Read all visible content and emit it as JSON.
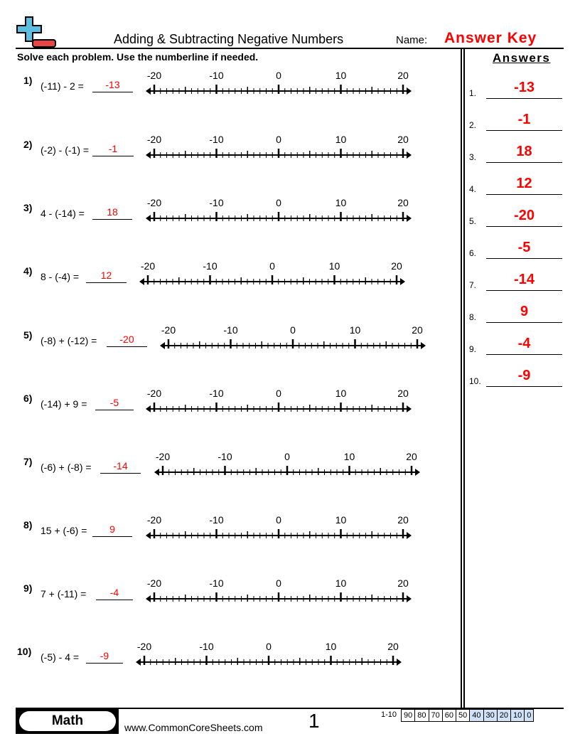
{
  "header": {
    "title": "Adding & Subtracting Negative Numbers",
    "name_label": "Name:",
    "name_value": "Answer Key",
    "logo": "plus-minus-logo",
    "logo_colors": {
      "plus": "#5bbde0",
      "minus": "#e84545"
    }
  },
  "instructions": "Solve each problem. Use the numberline if needed.",
  "numberline": {
    "min": -20,
    "max": 20,
    "labels": [
      "-20",
      "-10",
      "0",
      "10",
      "20"
    ]
  },
  "problems": [
    {
      "num": "1)",
      "expr": "(-11) - 2 =",
      "answer": "-13"
    },
    {
      "num": "2)",
      "expr": "(-2) - (-1) =",
      "answer": "-1"
    },
    {
      "num": "3)",
      "expr": "4 - (-14) =",
      "answer": "18"
    },
    {
      "num": "4)",
      "expr": "8 - (-4) =",
      "answer": "12"
    },
    {
      "num": "5)",
      "expr": "(-8) + (-12) =",
      "answer": "-20"
    },
    {
      "num": "6)",
      "expr": "(-14) + 9 =",
      "answer": "-5"
    },
    {
      "num": "7)",
      "expr": "(-6) + (-8) =",
      "answer": "-14"
    },
    {
      "num": "8)",
      "expr": "15 + (-6) =",
      "answer": "9"
    },
    {
      "num": "9)",
      "expr": "7 + (-11) =",
      "answer": "-4"
    },
    {
      "num": "10)",
      "expr": "(-5) - 4 =",
      "answer": "-9"
    }
  ],
  "answers": {
    "heading": "Answers",
    "items": [
      {
        "num": "1.",
        "value": "-13"
      },
      {
        "num": "2.",
        "value": "-1"
      },
      {
        "num": "3.",
        "value": "18"
      },
      {
        "num": "4.",
        "value": "12"
      },
      {
        "num": "5.",
        "value": "-20"
      },
      {
        "num": "6.",
        "value": "-5"
      },
      {
        "num": "7.",
        "value": "-14"
      },
      {
        "num": "8.",
        "value": "9"
      },
      {
        "num": "9.",
        "value": "-4"
      },
      {
        "num": "10.",
        "value": "-9"
      }
    ]
  },
  "footer": {
    "subject": "Math",
    "site": "www.CommonCoreSheets.com",
    "page": "1",
    "score_label": "1-10",
    "scores": [
      "90",
      "80",
      "70",
      "60",
      "50",
      "40",
      "30",
      "20",
      "10",
      "0"
    ],
    "score_highlight": "#cfe2f8"
  },
  "colors": {
    "answer": "#ff0000"
  }
}
